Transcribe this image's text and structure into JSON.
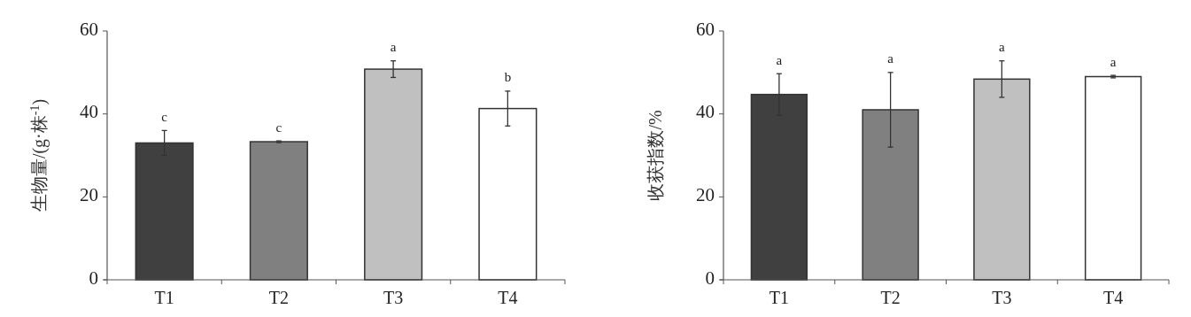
{
  "chart_data": [
    {
      "type": "bar",
      "ylabel": "生物量/(g·株$^{-1}$)",
      "categories": [
        "T1",
        "T2",
        "T3",
        "T4"
      ],
      "values": [
        33,
        33.3,
        50.8,
        41.3
      ],
      "colors": [
        "#404040",
        "#808080",
        "#c0c0c0",
        "#ffffff"
      ],
      "errors": [
        3,
        0.2,
        2,
        4.2
      ],
      "ylim": [
        0,
        60
      ],
      "yticks": [
        0,
        20,
        40,
        60
      ],
      "annotations": [
        "c",
        "c",
        "a",
        "b"
      ]
    },
    {
      "type": "bar",
      "ylabel": "收获指数/%",
      "categories": [
        "T1",
        "T2",
        "T3",
        "T4"
      ],
      "values": [
        44.7,
        41,
        48.4,
        49
      ],
      "colors": [
        "#404040",
        "#808080",
        "#c0c0c0",
        "#ffffff"
      ],
      "errors": [
        5,
        9,
        4.4,
        0.3
      ],
      "ylim": [
        0,
        60
      ],
      "yticks": [
        0,
        20,
        40,
        60
      ],
      "annotations": [
        "a",
        "a",
        "a",
        "a"
      ]
    }
  ]
}
